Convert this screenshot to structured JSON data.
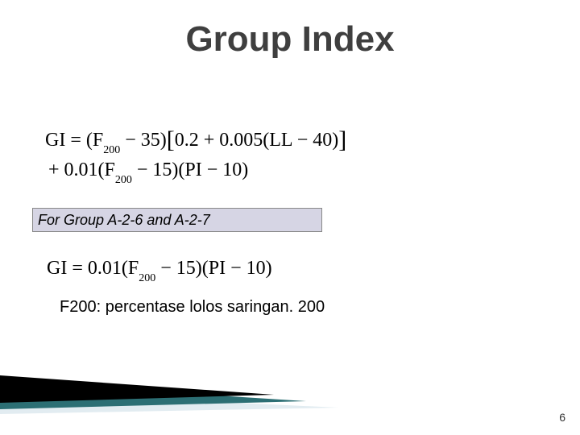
{
  "title": "Group Index",
  "equation1_line1_html": "GI = (F<span class=\"sub\">200</span> − 35)<span class=\"bigbr\">[</span>0.2 + 0.005(LL − 40)<span class=\"bigbr\">]</span>",
  "equation1_line2_html": "+ 0.01(F<span class=\"sub\">200</span> − 15)(PI − 10)",
  "note": "For Group A-2-6 and A-2-7",
  "equation2_html": "GI = 0.01(F<span class=\"sub\">200</span> − 15)(PI − 10)",
  "desc": "F200: percentase lolos saringan. 200",
  "page_number": "6",
  "colors": {
    "title": "#3f3f3f",
    "note_bg": "#d6d5e4",
    "note_border": "#888888",
    "wedge_black": "#000000",
    "wedge_teal": "#2c6f74",
    "wedge_light": "#e2ecf1",
    "background": "#ffffff"
  },
  "typography": {
    "title_fontsize": 44,
    "equation_fontsize": 24,
    "note_fontsize": 18,
    "desc_fontsize": 20,
    "page_fontsize": 14
  }
}
